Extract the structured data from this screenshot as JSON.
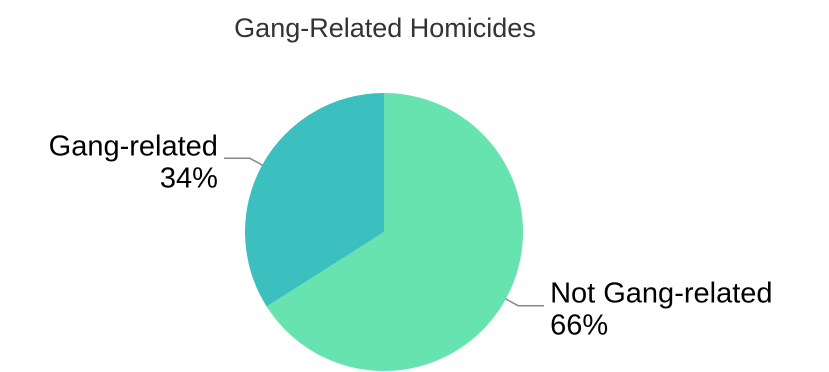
{
  "chart_data": {
    "type": "pie",
    "title": "Gang-Related Homicides",
    "slices": [
      {
        "label": "Not Gang-related",
        "value": 66,
        "display": "66%",
        "color": "#66e3ae"
      },
      {
        "label": "Gang-related",
        "value": 34,
        "display": "34%",
        "color": "#3bbfbf"
      }
    ],
    "start_angle_deg": 0,
    "direction": "clockwise",
    "legend": "none"
  }
}
